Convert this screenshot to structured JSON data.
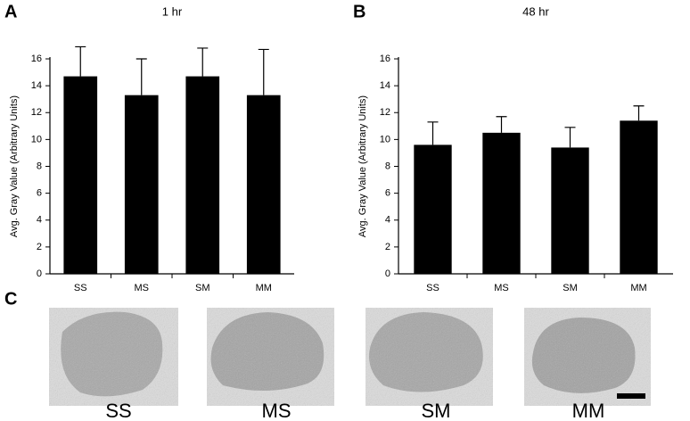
{
  "chart_data": [
    {
      "type": "bar",
      "panel": "A",
      "title": "1 hr",
      "y_label": "Avg. Gray Value (Arbitrary Units)",
      "categories": [
        "SS",
        "MS",
        "SM",
        "MM"
      ],
      "values": [
        14.7,
        13.3,
        14.7,
        13.3
      ],
      "errors": [
        2.2,
        2.7,
        2.1,
        3.4
      ],
      "color": "#000000",
      "ylim": [
        0,
        16
      ],
      "yticks": [
        0,
        2,
        4,
        6,
        8,
        10,
        12,
        14,
        16
      ]
    },
    {
      "type": "bar",
      "panel": "B",
      "title": "48 hr",
      "y_label": "Avg. Gray Value (Arbitrary Units)",
      "categories": [
        "SS",
        "MS",
        "SM",
        "MM"
      ],
      "values": [
        9.6,
        10.5,
        9.4,
        11.4
      ],
      "errors": [
        1.7,
        1.2,
        1.5,
        1.1
      ],
      "color": "#000000",
      "ylim": [
        0,
        16
      ],
      "yticks": [
        0,
        2,
        4,
        6,
        8,
        10,
        12,
        14,
        16
      ]
    }
  ],
  "micrographs": {
    "panel": "C",
    "labels": [
      "SS",
      "MS",
      "SM",
      "MM"
    ]
  }
}
